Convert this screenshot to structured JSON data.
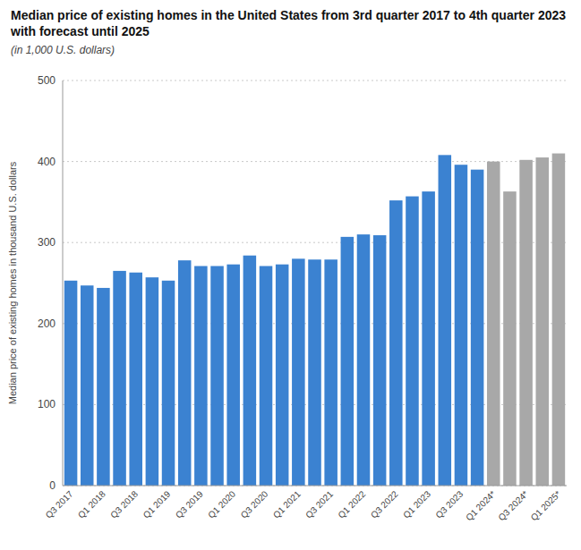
{
  "chart_data": {
    "type": "bar",
    "title": "Median price of existing homes in the United States from 3rd quarter 2017 to 4th quarter 2023 with forecast until 2025",
    "subtitle": "(in 1,000 U.S. dollars)",
    "y_label": "Median price of existing homes in thousand U.S. dollars",
    "categories": [
      "Q3 2017",
      null,
      "Q1 2018",
      null,
      "Q3 2018",
      null,
      "Q1 2019",
      null,
      "Q3 2019",
      null,
      "Q1 2020",
      null,
      "Q3 2020",
      null,
      "Q1 2021",
      null,
      "Q3 2021",
      null,
      "Q1 2022",
      null,
      "Q3 2022",
      null,
      "Q1 2023",
      null,
      "Q3 2023",
      null,
      "Q1 2024*",
      null,
      "Q3 2024*",
      null,
      "Q1 2025*"
    ],
    "values": [
      253,
      247,
      244,
      265,
      263,
      257,
      253,
      278,
      271,
      271,
      273,
      284,
      271,
      273,
      280,
      279,
      279,
      307,
      310,
      309,
      352,
      357,
      363,
      408,
      396,
      390,
      400,
      363,
      402,
      405,
      410
    ],
    "colors": [
      "#3b82d1",
      "#3b82d1",
      "#3b82d1",
      "#3b82d1",
      "#3b82d1",
      "#3b82d1",
      "#3b82d1",
      "#3b82d1",
      "#3b82d1",
      "#3b82d1",
      "#3b82d1",
      "#3b82d1",
      "#3b82d1",
      "#3b82d1",
      "#3b82d1",
      "#3b82d1",
      "#3b82d1",
      "#3b82d1",
      "#3b82d1",
      "#3b82d1",
      "#3b82d1",
      "#3b82d1",
      "#3b82d1",
      "#3b82d1",
      "#3b82d1",
      "#3b82d1",
      "#a8a8a8",
      "#a8a8a8",
      "#a8a8a8",
      "#a8a8a8",
      "#a8a8a8"
    ],
    "ylim": [
      0,
      500
    ],
    "yticks": [
      0,
      100,
      200,
      300,
      400,
      500
    ],
    "grid": true
  }
}
